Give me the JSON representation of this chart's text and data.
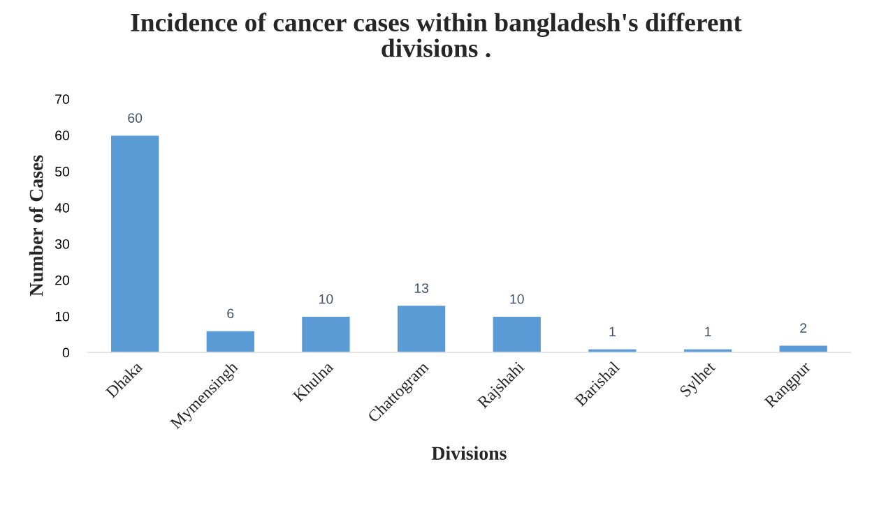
{
  "chart_data": {
    "type": "bar",
    "title": "Incidence of cancer cases within bangladesh's different\ndivisions .",
    "xlabel": "Divisions",
    "ylabel": "Number of Cases",
    "categories": [
      "Dhaka",
      "Mymensingh",
      "Khulna",
      "Chattogram",
      "Rajshahi",
      "Barishal",
      "Sylhet",
      "Rangpur"
    ],
    "values": [
      60,
      6,
      10,
      13,
      10,
      1,
      1,
      2
    ],
    "color": "#5b9bd5",
    "ylim": [
      0,
      70
    ],
    "yticks": [
      0,
      10,
      20,
      30,
      40,
      50,
      60,
      70
    ],
    "grid": false,
    "legend": false,
    "data_labels": true
  }
}
